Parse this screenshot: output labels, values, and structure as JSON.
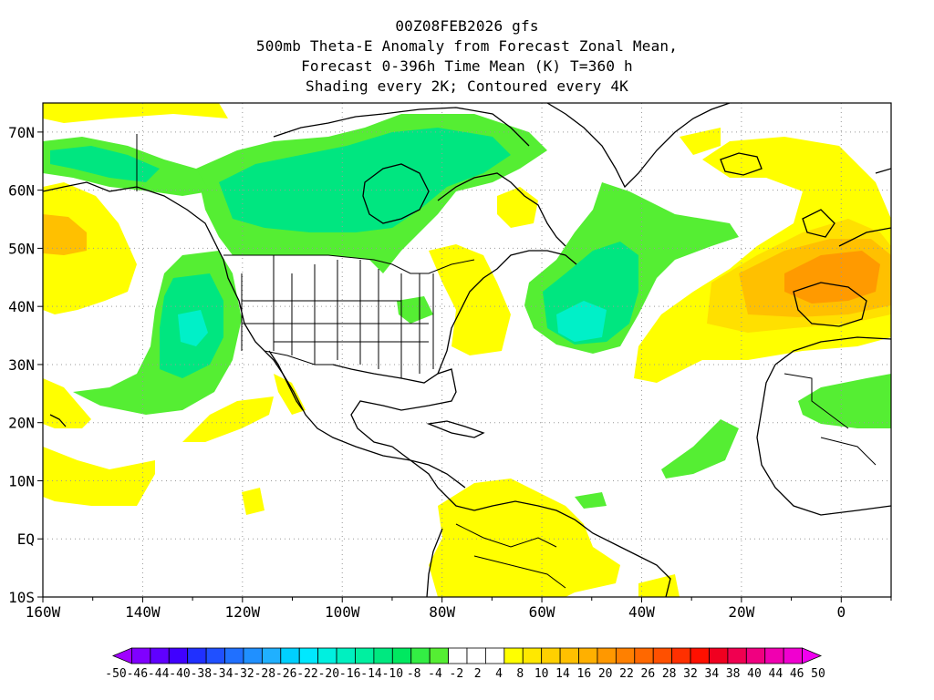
{
  "title": {
    "line1": "00Z08FEB2026 gfs",
    "line2": "500mb Theta-E Anomaly from Forecast Zonal Mean,",
    "line3": "Forecast 0-396h Time Mean (K) T=360 h",
    "line4": "Shading every 2K; Contoured every 4K"
  },
  "map": {
    "lon_range": [
      -160,
      10
    ],
    "lat_range": [
      -10,
      75
    ],
    "grid": "dotted",
    "lat_ticks": [
      {
        "value": 70,
        "label": "70N"
      },
      {
        "value": 60,
        "label": "60N"
      },
      {
        "value": 50,
        "label": "50N"
      },
      {
        "value": 40,
        "label": "40N"
      },
      {
        "value": 30,
        "label": "30N"
      },
      {
        "value": 20,
        "label": "20N"
      },
      {
        "value": 10,
        "label": "10N"
      },
      {
        "value": 0,
        "label": "EQ"
      },
      {
        "value": -10,
        "label": "10S"
      }
    ],
    "lon_ticks": [
      {
        "value": -160,
        "label": "160W"
      },
      {
        "value": -140,
        "label": "140W"
      },
      {
        "value": -120,
        "label": "120W"
      },
      {
        "value": -100,
        "label": "100W"
      },
      {
        "value": -80,
        "label": "80W"
      },
      {
        "value": -60,
        "label": "60W"
      },
      {
        "value": -40,
        "label": "40W"
      },
      {
        "value": -20,
        "label": "20W"
      },
      {
        "value": 0,
        "label": "0"
      }
    ],
    "shading_colors": {
      "yellow": "#ffff00",
      "gold": "#ffe000",
      "orange_light": "#ffc000",
      "orange": "#ff9a00",
      "green": "#55ee33",
      "mint": "#00e680",
      "aqua": "#00f0c8"
    }
  },
  "colorbar": {
    "labels": [
      "-50",
      "-46",
      "-44",
      "-40",
      "-38",
      "-34",
      "-32",
      "-28",
      "-26",
      "-22",
      "-20",
      "-16",
      "-14",
      "-10",
      "-8",
      "-4",
      "-2",
      "2",
      "4",
      "8",
      "10",
      "14",
      "16",
      "20",
      "22",
      "26",
      "28",
      "32",
      "34",
      "38",
      "40",
      "44",
      "46",
      "50"
    ],
    "colors": [
      "#a000ff",
      "#8000ff",
      "#6000ff",
      "#4000ff",
      "#2030ff",
      "#2050ff",
      "#2070ff",
      "#2090ff",
      "#20b0ff",
      "#00d0ff",
      "#00e8ff",
      "#00f0e0",
      "#00f0c0",
      "#00f0a0",
      "#00e880",
      "#00e860",
      "#33ee44",
      "#55ee33",
      "#ffffff",
      "#ffffff",
      "#ffffff",
      "#ffff00",
      "#ffe800",
      "#ffd000",
      "#ffc000",
      "#ffb000",
      "#ff9800",
      "#ff8000",
      "#ff6800",
      "#ff5000",
      "#ff3000",
      "#ff1000",
      "#f00020",
      "#f00050",
      "#f00080",
      "#f000b0",
      "#f000d0",
      "#f000f0"
    ]
  }
}
